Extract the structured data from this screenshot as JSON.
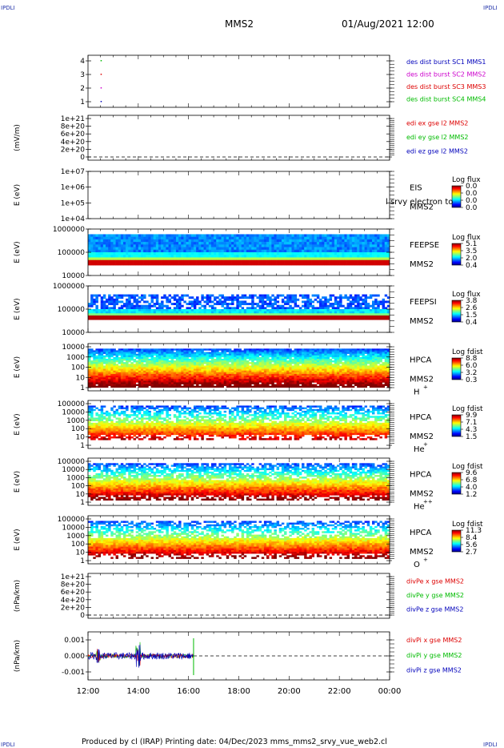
{
  "corner_label": "IPDLI",
  "header": {
    "spacecraft": "MMS2",
    "datetime": "01/Aug/2021 12:00"
  },
  "footer": {
    "text": "Produced by cl (IRAP)   Printing date: 04/Dec/2023   mms_mms2_srvy_vue_web2.cl"
  },
  "colors": {
    "red": "#dd0000",
    "green": "#00bb00",
    "blue": "#0000bb",
    "magenta": "#cc00cc"
  },
  "chart_data": {
    "type": "heatmap",
    "x_tick_labels": [
      "12:00",
      "14:00",
      "16:00",
      "18:00",
      "20:00",
      "22:00",
      "00:00"
    ],
    "x_range_hours": [
      12,
      24
    ],
    "panels": [
      {
        "id": "burst",
        "type": "scatter",
        "ylabel": "",
        "y_ticks": [
          "4",
          "3",
          "2",
          "1"
        ],
        "points": [
          {
            "x_hour": 12.5,
            "y": 4,
            "color": "green"
          },
          {
            "x_hour": 12.5,
            "y": 3,
            "color": "red"
          },
          {
            "x_hour": 12.5,
            "y": 2,
            "color": "magenta"
          },
          {
            "x_hour": 12.5,
            "y": 1,
            "color": "blue"
          }
        ],
        "legend": [
          {
            "label": "des dist burst SC1 MMS1",
            "color": "blue"
          },
          {
            "label": "des dist burst SC2 MMS2",
            "color": "magenta"
          },
          {
            "label": "des dist burst SC3 MMS3",
            "color": "red"
          },
          {
            "label": "des dist burst SC4 MMS4",
            "color": "green"
          }
        ]
      },
      {
        "id": "edi",
        "type": "line",
        "ylabel": "(mV/m)",
        "y_ticks": [
          "1e+21",
          "8e+20",
          "6e+20",
          "4e+20",
          "2e+20",
          "0"
        ],
        "legend": [
          {
            "label": "edi ex gse l2 MMS2",
            "color": "red"
          },
          {
            "label": "edi ey gse l2 MMS2",
            "color": "green"
          },
          {
            "label": "edi ez gse l2 MMS2",
            "color": "blue"
          }
        ]
      },
      {
        "id": "eis",
        "type": "heatmap",
        "ylabel": "E (eV)",
        "y_ticks": [
          "1e+07",
          "1e+06",
          "1e+05",
          "1e+04"
        ],
        "instrument": [
          "EIS",
          "MMS2"
        ],
        "overlay_text": "l srvy electron to",
        "colorbar": {
          "title": "Log flux",
          "ticks": [
            "0.0",
            "0.0",
            "0.0",
            "0.0"
          ]
        }
      },
      {
        "id": "feepse",
        "type": "heatmap",
        "ylabel": "E (eV)",
        "y_ticks": [
          "1000000",
          "100000",
          "10000"
        ],
        "instrument": [
          "FEEPSE",
          "MMS2"
        ],
        "colorbar": {
          "title": "Log flux",
          "ticks": [
            "5.1",
            "3.5",
            "2.0",
            "0.4"
          ]
        }
      },
      {
        "id": "feepsi",
        "type": "heatmap",
        "ylabel": "E (eV)",
        "y_ticks": [
          "1000000",
          "100000",
          "10000"
        ],
        "instrument": [
          "FEEPSI",
          "MMS2"
        ],
        "colorbar": {
          "title": "Log flux",
          "ticks": [
            "3.8",
            "2.6",
            "1.5",
            "0.4"
          ]
        }
      },
      {
        "id": "hpca_h",
        "type": "heatmap",
        "ylabel": "E (eV)",
        "y_ticks": [
          "10000",
          "1000",
          "100",
          "10",
          "1"
        ],
        "instrument": [
          "HPCA",
          "MMS2"
        ],
        "species": "H",
        "charge": "+",
        "colorbar": {
          "title": "Log fdist",
          "ticks": [
            "8.8",
            "6.0",
            "3.2",
            "0.3"
          ]
        }
      },
      {
        "id": "hpca_he",
        "type": "heatmap",
        "ylabel": "E (eV)",
        "y_ticks": [
          "100000",
          "10000",
          "1000",
          "100",
          "10",
          "1"
        ],
        "instrument": [
          "HPCA",
          "MMS2"
        ],
        "species": "He",
        "charge": "+",
        "colorbar": {
          "title": "Log fdist",
          "ticks": [
            "9.9",
            "7.1",
            "4.3",
            "1.5"
          ]
        }
      },
      {
        "id": "hpca_hepp",
        "type": "heatmap",
        "ylabel": "E (eV)",
        "y_ticks": [
          "100000",
          "10000",
          "1000",
          "100",
          "10",
          "1"
        ],
        "instrument": [
          "HPCA",
          "MMS2"
        ],
        "species": "He",
        "charge": "++",
        "colorbar": {
          "title": "Log fdist",
          "ticks": [
            "9.6",
            "6.8",
            "4.0",
            "1.2"
          ]
        }
      },
      {
        "id": "hpca_o",
        "type": "heatmap",
        "ylabel": "E (eV)",
        "y_ticks": [
          "100000",
          "10000",
          "1000",
          "100",
          "10",
          "1"
        ],
        "instrument": [
          "HPCA",
          "MMS2"
        ],
        "species": "O",
        "charge": "+",
        "colorbar": {
          "title": "Log fdist",
          "ticks": [
            "11.3",
            "8.4",
            "5.6",
            "2.7"
          ]
        }
      },
      {
        "id": "divpe",
        "type": "line",
        "ylabel": "(nPa/km)",
        "y_ticks": [
          "1e+21",
          "8e+20",
          "6e+20",
          "4e+20",
          "2e+20",
          "0"
        ],
        "legend": [
          {
            "label": "divPe x gse MMS2",
            "color": "red"
          },
          {
            "label": "divPe y gse MMS2",
            "color": "green"
          },
          {
            "label": "divPe z gse MMS2",
            "color": "blue"
          }
        ]
      },
      {
        "id": "divpi",
        "type": "line",
        "ylabel": "(nPa/km)",
        "y_ticks": [
          "0.001",
          "0.000",
          "-0.001"
        ],
        "data_end_hour": 16.2,
        "legend": [
          {
            "label": "divPi x gse MMS2",
            "color": "red"
          },
          {
            "label": "divPi y gse MMS2",
            "color": "green"
          },
          {
            "label": "divPi z gse MMS2",
            "color": "blue"
          }
        ]
      }
    ]
  }
}
